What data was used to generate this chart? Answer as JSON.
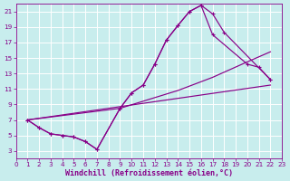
{
  "xlabel": "Windchill (Refroidissement éolien,°C)",
  "background_color": "#c8eded",
  "grid_color": "#b0d8d8",
  "line_color": "#880088",
  "xlim": [
    0,
    23
  ],
  "ylim": [
    2,
    22
  ],
  "xticks": [
    0,
    1,
    2,
    3,
    4,
    5,
    6,
    7,
    8,
    9,
    10,
    11,
    12,
    13,
    14,
    15,
    16,
    17,
    18,
    19,
    20,
    21,
    22,
    23
  ],
  "yticks": [
    3,
    5,
    7,
    9,
    11,
    13,
    15,
    17,
    19,
    21
  ],
  "tick_fontsize": 5.2,
  "xlabel_fontsize": 6.0,
  "figsize": [
    3.2,
    2.0
  ],
  "dpi": 100,
  "curve1_x": [
    1,
    2,
    3,
    4,
    5,
    6,
    7,
    9,
    10,
    11,
    12,
    13,
    14,
    15,
    16,
    17,
    18,
    22
  ],
  "curve1_y": [
    7,
    6,
    5.2,
    5.0,
    4.8,
    4.2,
    3.2,
    8.5,
    10.5,
    11.5,
    14.2,
    17.3,
    19.2,
    21.0,
    21.8,
    20.7,
    18.3,
    12.2
  ],
  "curve2_x": [
    1,
    2,
    3,
    4,
    5,
    6,
    7,
    9,
    10,
    11,
    12,
    13,
    14,
    15,
    16,
    17,
    20,
    21,
    22
  ],
  "curve2_y": [
    7,
    6,
    5.2,
    5.0,
    4.8,
    4.2,
    3.2,
    8.5,
    10.5,
    11.5,
    14.2,
    17.3,
    19.2,
    21.0,
    21.8,
    18.0,
    14.2,
    13.8,
    12.2
  ],
  "line3_x": [
    1,
    9,
    14,
    17,
    20,
    22
  ],
  "line3_y": [
    7,
    8.5,
    10.8,
    12.5,
    14.5,
    15.8
  ],
  "line4_x": [
    1,
    22
  ],
  "line4_y": [
    7,
    11.5
  ]
}
